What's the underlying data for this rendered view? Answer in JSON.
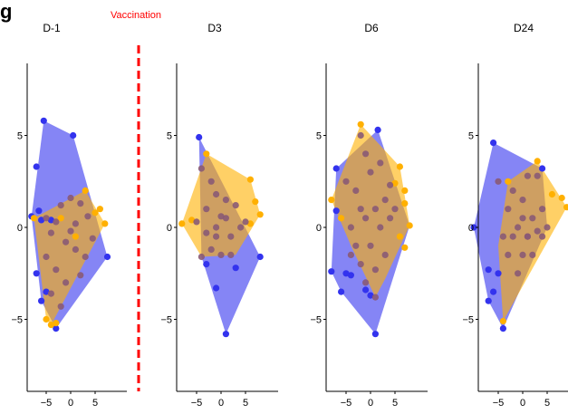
{
  "panel_letter": "g",
  "annotation": {
    "text": "Vaccination",
    "color": "#ff0000"
  },
  "colors": {
    "blue": "#3333ee",
    "orange": "#ffb000",
    "overlap": "#a06070"
  },
  "chart_data": [
    {
      "type": "scatter",
      "title": "D-1",
      "show_x_ticks": false,
      "show_y_ticks": true,
      "x_ticks": [
        -5,
        0,
        5
      ],
      "y_ticks": [
        5,
        0,
        -5
      ],
      "xlim": [
        -9,
        9
      ],
      "ylim": [
        -9,
        9
      ],
      "series": [
        {
          "color": "#3333ee",
          "points": [
            [
              -5.5,
              5.8
            ],
            [
              0.5,
              5.0
            ],
            [
              -7,
              3.3
            ],
            [
              -8,
              0.6
            ],
            [
              -6.5,
              0.9
            ],
            [
              -6,
              0.4
            ],
            [
              7.5,
              -1.6
            ],
            [
              -7,
              -2.5
            ],
            [
              -6,
              -4
            ],
            [
              -3,
              -5.5
            ],
            [
              -5,
              -3.5
            ],
            [
              -4,
              0.4
            ]
          ]
        },
        {
          "color": "#ffb000",
          "points": [
            [
              -7.5,
              0.5
            ],
            [
              3,
              2.0
            ],
            [
              6,
              1.0
            ],
            [
              7,
              0.2
            ],
            [
              -5,
              -5
            ],
            [
              -4,
              -5.3
            ],
            [
              -3,
              -5.2
            ],
            [
              5,
              0.8
            ],
            [
              -2,
              0.5
            ],
            [
              1,
              -0.5
            ]
          ]
        },
        {
          "color": "#8a5a75",
          "points": [
            [
              -5,
              0.5
            ],
            [
              -3,
              0.3
            ],
            [
              -2,
              1.2
            ],
            [
              0,
              1.6
            ],
            [
              2,
              1.3
            ],
            [
              3.5,
              0.6
            ],
            [
              -4,
              -0.3
            ],
            [
              -1,
              -0.8
            ],
            [
              1,
              -1.2
            ],
            [
              3,
              -1.6
            ],
            [
              -3,
              -2.3
            ],
            [
              -1,
              -3
            ],
            [
              2,
              -2.6
            ],
            [
              -4,
              -3.6
            ],
            [
              -2,
              -4.3
            ],
            [
              0,
              -0.2
            ],
            [
              4.5,
              -0.6
            ],
            [
              -5,
              -1.6
            ],
            [
              1,
              0.2
            ]
          ]
        }
      ],
      "hulls": [
        {
          "color": "#3333ee",
          "points": [
            [
              -5.5,
              5.8
            ],
            [
              0.5,
              5.0
            ],
            [
              7.5,
              -1.6
            ],
            [
              -3,
              -5.5
            ],
            [
              -6,
              -4
            ],
            [
              -8,
              0.6
            ]
          ]
        },
        {
          "color": "#ffb000",
          "points": [
            [
              -7.5,
              0.5
            ],
            [
              3,
              2.0
            ],
            [
              7,
              0.2
            ],
            [
              -4,
              -5.3
            ],
            [
              -5,
              -5
            ]
          ]
        }
      ]
    },
    {
      "type": "scatter",
      "title": "D3",
      "show_x_ticks": false,
      "show_y_ticks": true,
      "x_ticks": [
        -5,
        0,
        5
      ],
      "y_ticks": [
        5,
        0,
        -5
      ],
      "xlim": [
        -9,
        9
      ],
      "ylim": [
        -9,
        9
      ],
      "series": [
        {
          "color": "#3333ee",
          "points": [
            [
              -4.5,
              4.9
            ],
            [
              8,
              -1.6
            ],
            [
              1,
              -5.8
            ],
            [
              -1,
              -3.3
            ],
            [
              3,
              -2.2
            ],
            [
              -3,
              -2
            ]
          ]
        },
        {
          "color": "#ffb000",
          "points": [
            [
              -8,
              0.2
            ],
            [
              -3,
              4
            ],
            [
              6,
              2.6
            ],
            [
              7,
              1.4
            ],
            [
              8,
              0.7
            ],
            [
              -6,
              0.4
            ],
            [
              6,
              0.2
            ]
          ]
        },
        {
          "color": "#8a5a75",
          "points": [
            [
              -4,
              3.2
            ],
            [
              -2,
              2.5
            ],
            [
              -1,
              1.8
            ],
            [
              1,
              1.5
            ],
            [
              -3,
              1.0
            ],
            [
              -5,
              0.3
            ],
            [
              -3,
              -0.3
            ],
            [
              -1,
              0
            ],
            [
              1,
              0.5
            ],
            [
              2,
              -0.5
            ],
            [
              4,
              0
            ],
            [
              -2,
              -1.2
            ],
            [
              0,
              -1.5
            ],
            [
              2,
              -1.5
            ],
            [
              -4,
              -1.6
            ],
            [
              -1,
              -0.5
            ],
            [
              5,
              0.3
            ],
            [
              3,
              1.2
            ],
            [
              0,
              0.6
            ]
          ]
        }
      ],
      "hulls": [
        {
          "color": "#3333ee",
          "points": [
            [
              -4.5,
              4.9
            ],
            [
              8,
              -1.6
            ],
            [
              1,
              -5.8
            ],
            [
              -4,
              -1.6
            ]
          ]
        },
        {
          "color": "#ffb000",
          "points": [
            [
              -3,
              4
            ],
            [
              6,
              2.6
            ],
            [
              8,
              0.7
            ],
            [
              3,
              -1.5
            ],
            [
              -4,
              -1.6
            ],
            [
              -8,
              0.2
            ]
          ]
        }
      ]
    },
    {
      "type": "scatter",
      "title": "D6",
      "show_x_ticks": false,
      "show_y_ticks": true,
      "x_ticks": [
        -5,
        0,
        5
      ],
      "y_ticks": [
        5,
        0,
        -5
      ],
      "xlim": [
        -9,
        9
      ],
      "ylim": [
        -9,
        9
      ],
      "series": [
        {
          "color": "#3333ee",
          "points": [
            [
              1.5,
              5.3
            ],
            [
              -7,
              3.2
            ],
            [
              -7,
              0.9
            ],
            [
              -8,
              -2.4
            ],
            [
              -6,
              -3.5
            ],
            [
              -4,
              -2.6
            ],
            [
              1,
              -5.8
            ],
            [
              0,
              -3.7
            ],
            [
              -1,
              -3.4
            ],
            [
              -5,
              -2.5
            ]
          ]
        },
        {
          "color": "#ffb000",
          "points": [
            [
              -2,
              5.6
            ],
            [
              6,
              3.3
            ],
            [
              7,
              2.0
            ],
            [
              7,
              1.3
            ],
            [
              8,
              0.1
            ],
            [
              7,
              -1.1
            ],
            [
              -8,
              1.5
            ],
            [
              6,
              -0.5
            ],
            [
              5,
              2.4
            ],
            [
              -6,
              0.5
            ]
          ]
        },
        {
          "color": "#8a5a75",
          "points": [
            [
              -2,
              5
            ],
            [
              -1,
              4
            ],
            [
              0,
              3
            ],
            [
              2,
              3.5
            ],
            [
              -5,
              2.5
            ],
            [
              -3,
              2
            ],
            [
              4,
              2.3
            ],
            [
              -2,
              1
            ],
            [
              1,
              1
            ],
            [
              3,
              1.5
            ],
            [
              -4,
              0
            ],
            [
              -1,
              0.5
            ],
            [
              2,
              0
            ],
            [
              4,
              0.5
            ],
            [
              -3,
              -1
            ],
            [
              0,
              -1
            ],
            [
              3,
              -1.5
            ],
            [
              -2,
              -2
            ],
            [
              1,
              -2.3
            ],
            [
              -1,
              -3
            ],
            [
              1,
              -3.8
            ],
            [
              -4,
              -1.5
            ],
            [
              5,
              1
            ]
          ]
        }
      ],
      "hulls": [
        {
          "color": "#3333ee",
          "points": [
            [
              1.5,
              5.3
            ],
            [
              8,
              0.1
            ],
            [
              1,
              -5.8
            ],
            [
              -6,
              -3.5
            ],
            [
              -8,
              -2.4
            ],
            [
              -7,
              3.2
            ]
          ]
        },
        {
          "color": "#ffb000",
          "points": [
            [
              -2,
              5.6
            ],
            [
              6,
              3.3
            ],
            [
              8,
              0.1
            ],
            [
              3,
              -2.8
            ],
            [
              1,
              -3.8
            ],
            [
              -4,
              -1
            ],
            [
              -8,
              1.5
            ]
          ]
        }
      ]
    },
    {
      "type": "scatter",
      "title": "D24",
      "show_x_ticks": true,
      "show_y_ticks": true,
      "x_ticks": [
        -5,
        0,
        5
      ],
      "y_ticks": [
        5,
        0,
        -5
      ],
      "xlim": [
        -9,
        9
      ],
      "ylim": [
        -9,
        9
      ],
      "series": [
        {
          "color": "#3333ee",
          "points": [
            [
              -6,
              4.6
            ],
            [
              4,
              3.2
            ],
            [
              -10,
              0
            ],
            [
              -7,
              -2.3
            ],
            [
              -7,
              -4
            ],
            [
              -6,
              -3.5
            ],
            [
              -4,
              -5.5
            ],
            [
              -5,
              -2.5
            ]
          ]
        },
        {
          "color": "#ffb000",
          "points": [
            [
              -3,
              2.5
            ],
            [
              3,
              3.6
            ],
            [
              8,
              1.6
            ],
            [
              9,
              1.1
            ],
            [
              6,
              1.8
            ],
            [
              -4,
              -5.1
            ]
          ]
        },
        {
          "color": "#8a5a75",
          "points": [
            [
              -5,
              2.5
            ],
            [
              -2,
              2
            ],
            [
              1,
              2.8
            ],
            [
              3,
              2.8
            ],
            [
              -3,
              1
            ],
            [
              0,
              1.5
            ],
            [
              2,
              0.5
            ],
            [
              4,
              1
            ],
            [
              -1,
              0
            ],
            [
              1,
              -0.5
            ],
            [
              3,
              -0.2
            ],
            [
              -2,
              -0.5
            ],
            [
              0,
              -1.5
            ],
            [
              2,
              -1.5
            ],
            [
              -1,
              -2.5
            ],
            [
              -3,
              -1.5
            ],
            [
              5,
              0
            ],
            [
              1,
              -0.5
            ],
            [
              -4,
              -0.5
            ],
            [
              0,
              0.5
            ],
            [
              4,
              -0.5
            ]
          ]
        }
      ],
      "hulls": [
        {
          "color": "#3333ee",
          "points": [
            [
              -6,
              4.6
            ],
            [
              4,
              3.2
            ],
            [
              5,
              0
            ],
            [
              -4,
              -5.5
            ],
            [
              -7,
              -4
            ],
            [
              -10,
              0
            ]
          ]
        },
        {
          "color": "#ffb000",
          "points": [
            [
              -3,
              2.5
            ],
            [
              3,
              3.6
            ],
            [
              9,
              1.1
            ],
            [
              -4,
              -5.1
            ],
            [
              -5,
              -1
            ]
          ]
        }
      ]
    }
  ]
}
